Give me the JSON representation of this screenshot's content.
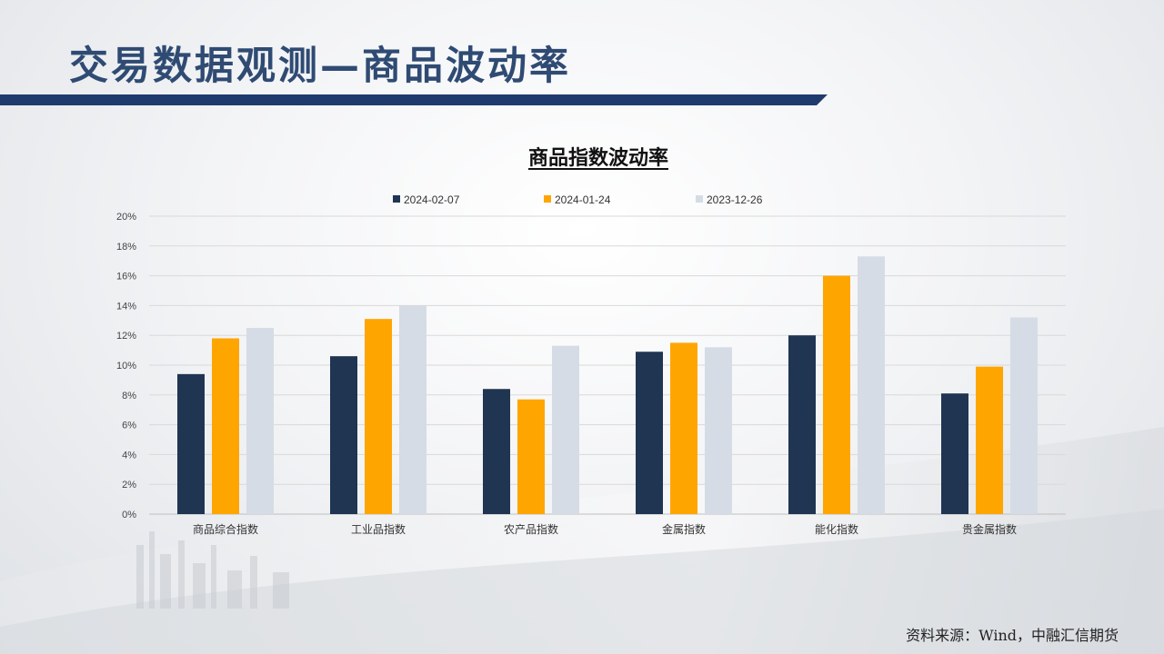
{
  "slide": {
    "title": "交易数据观测—商品波动率",
    "source": "资料来源：Wind，中融汇信期货"
  },
  "colors": {
    "title": "#2f4b73",
    "title_bar": "#1f3b6e",
    "series": [
      "#1f3552",
      "#ffa500",
      "#d6dce5"
    ]
  },
  "chart_data": {
    "type": "bar",
    "title": "商品指数波动率",
    "categories": [
      "商品综合指数",
      "工业品指数",
      "农产品指数",
      "金属指数",
      "能化指数",
      "贵金属指数"
    ],
    "series": [
      {
        "name": "2024-02-07",
        "values": [
          9.4,
          10.6,
          8.4,
          10.9,
          12.0,
          8.1
        ]
      },
      {
        "name": "2024-01-24",
        "values": [
          11.8,
          13.1,
          7.7,
          11.5,
          16.0,
          9.9
        ]
      },
      {
        "name": "2023-12-26",
        "values": [
          12.5,
          14.0,
          11.3,
          11.2,
          17.3,
          13.2
        ]
      }
    ],
    "ylim": [
      0,
      20
    ],
    "yticks": [
      "0%",
      "2%",
      "4%",
      "6%",
      "8%",
      "10%",
      "12%",
      "14%",
      "16%",
      "18%",
      "20%"
    ],
    "grid": true,
    "legend_position": "top"
  }
}
